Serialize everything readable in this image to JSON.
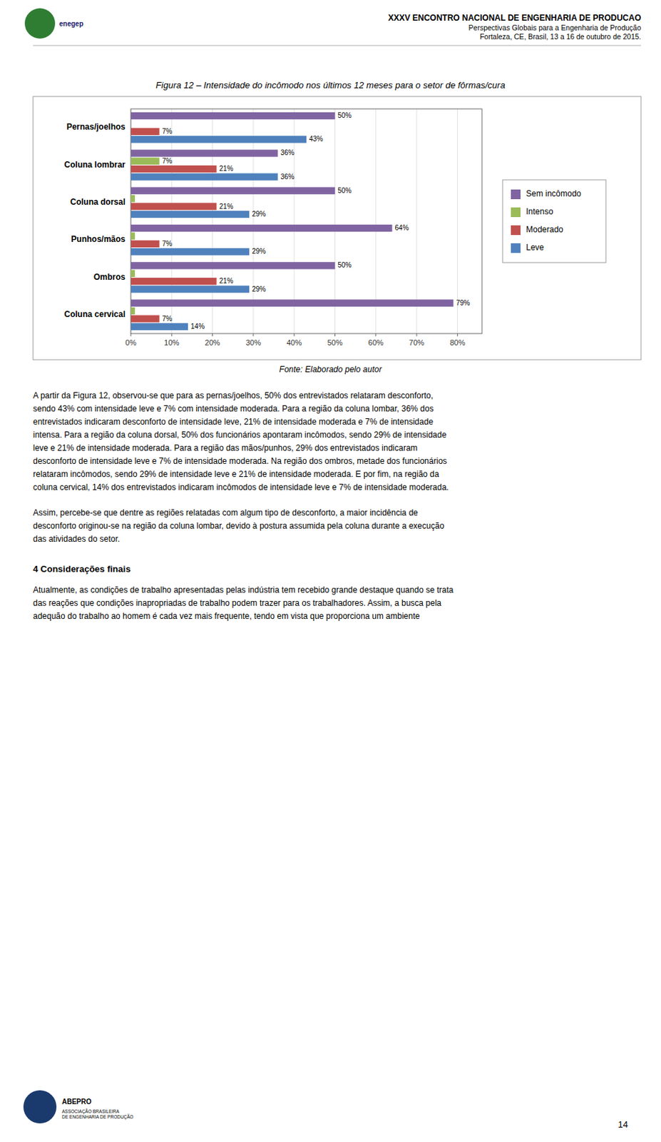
{
  "chart_data": {
    "type": "bar",
    "orientation": "horizontal",
    "title": "Figura 12 – Intensidade do incômodo nos últimos 12 meses para o setor de fôrmas/cura",
    "categories": [
      "Coluna cervical",
      "Ombros",
      "Punhos/mãos",
      "Coluna dorsal",
      "Coluna lombrar",
      "Pernas/joelhos"
    ],
    "series": [
      {
        "name": "Sem incômodo",
        "color": "#8064A2",
        "values": [
          79,
          50,
          64,
          50,
          36,
          50
        ],
        "value_labels": [
          "79%",
          "50%",
          "64%",
          "50%",
          "36%",
          "50%"
        ]
      },
      {
        "name": "Intenso",
        "color": "#9BBB59",
        "values": [
          1,
          1,
          1,
          1,
          7,
          0
        ],
        "value_labels": [
          null,
          null,
          null,
          null,
          "7%",
          null
        ]
      },
      {
        "name": "Moderado",
        "color": "#C0504D",
        "values": [
          7,
          21,
          7,
          21,
          21,
          7
        ],
        "value_labels": [
          "7%",
          "21%",
          "7%",
          "21%",
          "21%",
          "7%"
        ]
      },
      {
        "name": "Leve",
        "color": "#4F81BD",
        "values": [
          14,
          29,
          29,
          29,
          36,
          43
        ],
        "value_labels": [
          "14%",
          "29%",
          "29%",
          "29%",
          "36%",
          "43%"
        ]
      }
    ],
    "xlim": [
      0,
      86
    ],
    "xticks": [
      {
        "value": 0,
        "label": "0%"
      },
      {
        "value": 10,
        "label": "10%"
      },
      {
        "value": 20,
        "label": "20%"
      },
      {
        "value": 30,
        "label": "30%"
      },
      {
        "value": 40,
        "label": "40%"
      },
      {
        "value": 50,
        "label": "50%"
      },
      {
        "value": 60,
        "label": "60%"
      },
      {
        "value": 70,
        "label": "70%"
      },
      {
        "value": 80,
        "label": "80%"
      }
    ],
    "grid": true,
    "legend": "right",
    "data_labels": true
  },
  "page": {
    "header_title": "XXXV ENCONTRO NACIONAL DE ENGENHARIA DE PRODUCAO",
    "header_sub1": "Perspectivas Globais para a Engenharia de Produção",
    "header_sub2": "Fortaleza, CE, Brasil, 13 a 16 de outubro de 2015.",
    "logo_top": "enegep",
    "fonte": "Fonte: Elaborado pelo autor",
    "body_text1": "A partir da Figura 12, observou-se que para as pernas/joelhos, 50% dos entrevistados relataram desconforto,\nsendo 43% com intensidade leve e 7% com intensidade moderada. Para a região da coluna lombar, 36% dos\nentrevistados indicaram desconforto de intensidade leve, 21% de intensidade moderada e 7% de intensidade\nintensa. Para a região da coluna dorsal, 50% dos funcionários apontaram incômodos, sendo 29% de intensidade\nleve e 21% de intensidade moderada. Para a região das mãos/punhos, 29% dos entrevistados indicaram\ndesconforto de intensidade leve e 7% de intensidade moderada. Na região dos ombros, metade dos funcionários\nrelataram incômodos, sendo 29% de intensidade leve e 21% de intensidade moderada. E por fim, na região da\ncoluna cervical, 14% dos entrevistados indicaram incômodos de intensidade leve e 7% de intensidade moderada.",
    "body_text2": "Assim, percebe-se que dentre as regiões relatadas com algum tipo de desconforto, a maior incidência de\ndesconforto originou-se na região da coluna lombar, devido à postura assumida pela coluna durante a execução\ndas atividades do setor.",
    "section_header": "4 Considerações finais",
    "body_text3": "Atualmente, as condições de trabalho apresentadas pelas indústria tem recebido grande destaque quando se trata\ndas reações que condições inapropriadas de trabalho podem trazer para os trabalhadores. Assim, a busca pela\nadequão do trabalho ao homem é cada vez mais frequente, tendo em vista que proporciona um ambiente",
    "page_number": "14",
    "logo_bottom_title": "ABEPRO",
    "logo_bottom_sub": "ASSOCIAÇÃO BRASILEIRA\nDE ENGENHARIA DE PRODUÇÃO"
  }
}
